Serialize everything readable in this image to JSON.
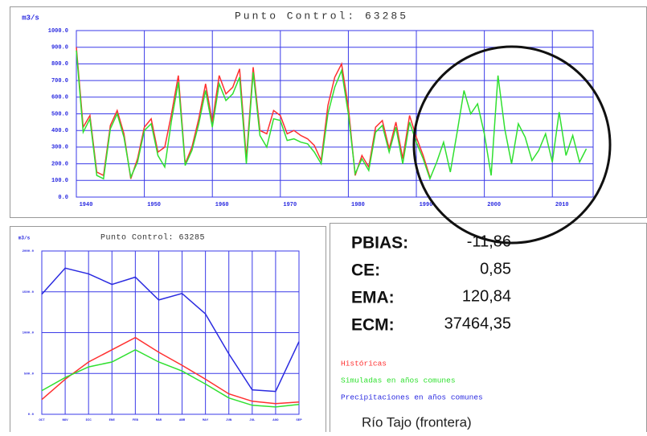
{
  "chart_data": [
    {
      "type": "line",
      "title": "Punto Control: 63285",
      "ylabel": "m3/s",
      "x": [
        1940,
        1941,
        1942,
        1943,
        1944,
        1945,
        1946,
        1947,
        1948,
        1949,
        1950,
        1951,
        1952,
        1953,
        1954,
        1955,
        1956,
        1957,
        1958,
        1959,
        1960,
        1961,
        1962,
        1963,
        1964,
        1965,
        1966,
        1967,
        1968,
        1969,
        1970,
        1971,
        1972,
        1973,
        1974,
        1975,
        1976,
        1977,
        1978,
        1979,
        1980,
        1981,
        1982,
        1983,
        1984,
        1985,
        1986,
        1987,
        1988,
        1989,
        1990,
        1991,
        1992,
        1993,
        1994,
        1995,
        1996,
        1997,
        1998,
        1999,
        2000,
        2001,
        2002,
        2003,
        2004,
        2005,
        2006,
        2007,
        2008,
        2009,
        2010,
        2011,
        2012,
        2013,
        2014,
        2015
      ],
      "series": [
        {
          "color": "#ff3030",
          "values": [
            900,
            420,
            490,
            150,
            130,
            430,
            520,
            380,
            110,
            230,
            420,
            470,
            270,
            300,
            500,
            730,
            200,
            300,
            470,
            680,
            450,
            730,
            620,
            660,
            770,
            230,
            780,
            400,
            380,
            520,
            490,
            380,
            400,
            370,
            350,
            310,
            220,
            550,
            720,
            800,
            540,
            130,
            250,
            180,
            420,
            460,
            290,
            450,
            230,
            490,
            360,
            250,
            120,
            null,
            null,
            null,
            null,
            null,
            null,
            null,
            null,
            null,
            null,
            null,
            null,
            null,
            null,
            null,
            null,
            null,
            null,
            null,
            null,
            null,
            null,
            null
          ]
        },
        {
          "color": "#30e030",
          "values": [
            880,
            390,
            470,
            130,
            110,
            410,
            500,
            360,
            120,
            210,
            400,
            440,
            250,
            180,
            460,
            690,
            190,
            280,
            440,
            640,
            420,
            680,
            580,
            620,
            720,
            200,
            750,
            370,
            300,
            470,
            460,
            340,
            350,
            330,
            320,
            270,
            200,
            500,
            660,
            760,
            500,
            140,
            230,
            160,
            390,
            430,
            270,
            420,
            200,
            450,
            330,
            230,
            110,
            210,
            330,
            150,
            390,
            640,
            500,
            560,
            380,
            130,
            730,
            410,
            200,
            440,
            360,
            220,
            280,
            380,
            210,
            510,
            250,
            370,
            210,
            290
          ]
        }
      ],
      "xlim": [
        1940,
        2016
      ],
      "xticks": [
        1940,
        1950,
        1960,
        1970,
        1980,
        1990,
        2000,
        2010
      ],
      "ylim": [
        0,
        1000
      ],
      "yticks": [
        {
          "value": 0,
          "label": "0.0"
        },
        {
          "value": 100,
          "label": "100.0"
        },
        {
          "value": 200,
          "label": "200.0"
        },
        {
          "value": 300,
          "label": "300.0"
        },
        {
          "value": 400,
          "label": "400.0"
        },
        {
          "value": 500,
          "label": "500.0"
        },
        {
          "value": 600,
          "label": "600.0"
        },
        {
          "value": 700,
          "label": "700.0"
        },
        {
          "value": 800,
          "label": "800.0"
        },
        {
          "value": 900,
          "label": "900.0"
        },
        {
          "value": 1000,
          "label": "1000.0"
        }
      ],
      "grid": true
    },
    {
      "type": "line",
      "title": "Punto Control: 63285",
      "ylabel": "m3/s",
      "categories": [
        "OCT",
        "NOV",
        "DIC",
        "ENE",
        "FEB",
        "MAR",
        "ABR",
        "MAY",
        "JUN",
        "JUL",
        "AGO",
        "SEP"
      ],
      "series": [
        {
          "name": "Históricas",
          "color": "#ff3030",
          "values": [
            180,
            430,
            640,
            790,
            940,
            760,
            600,
            430,
            250,
            160,
            130,
            150
          ]
        },
        {
          "name": "Simuladas en años comunes",
          "color": "#30e030",
          "values": [
            290,
            450,
            580,
            640,
            790,
            640,
            530,
            370,
            200,
            110,
            90,
            120
          ]
        },
        {
          "name": "Precipitaciones en años comunes",
          "color": "#2a2ae0",
          "values": [
            1470,
            1790,
            1720,
            1590,
            1680,
            1400,
            1480,
            1230,
            740,
            300,
            280,
            890
          ]
        }
      ],
      "ylim": [
        0,
        2000
      ],
      "yticks": [
        {
          "value": 0,
          "label": "0.0"
        },
        {
          "value": 500,
          "label": "500.0"
        },
        {
          "value": 1000,
          "label": "1000.0"
        },
        {
          "value": 1500,
          "label": "1500.0"
        },
        {
          "value": 2000,
          "label": "2000.0"
        }
      ],
      "grid": true
    }
  ],
  "stats": [
    {
      "label": "PBIAS:",
      "value": "-11,86"
    },
    {
      "label": "CE:",
      "value": "0,85"
    },
    {
      "label": "EMA:",
      "value": "120,84"
    },
    {
      "label": "ECM:",
      "value": "37464,35"
    }
  ],
  "location": "Río Tajo (frontera)"
}
